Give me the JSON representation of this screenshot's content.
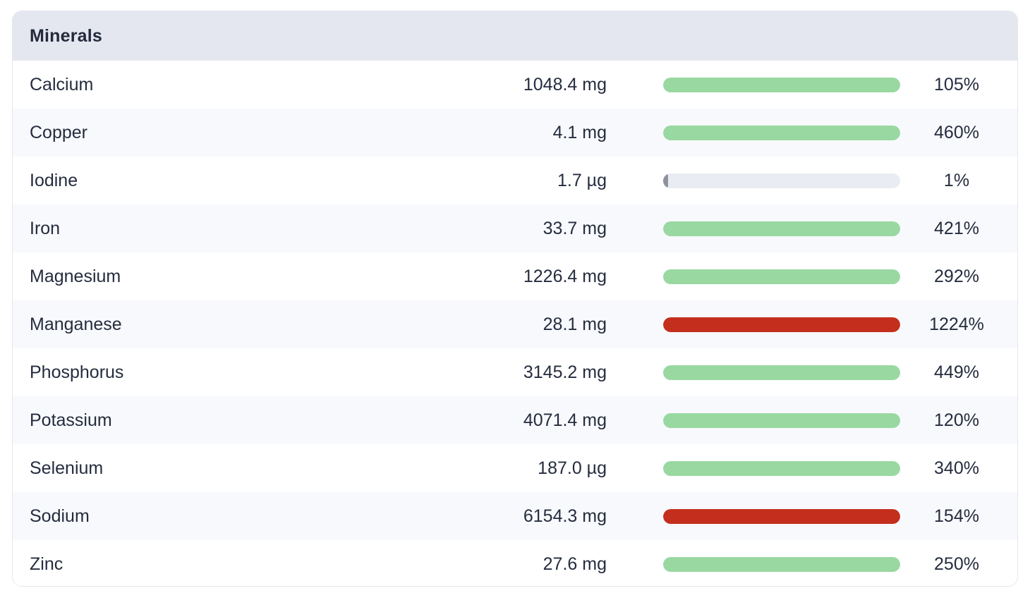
{
  "table": {
    "title": "Minerals",
    "rows": [
      {
        "name": "Calcium",
        "amount": "1048.4 mg",
        "percent_label": "105%",
        "percent": 105,
        "bar_color": "green"
      },
      {
        "name": "Copper",
        "amount": "4.1 mg",
        "percent_label": "460%",
        "percent": 460,
        "bar_color": "green"
      },
      {
        "name": "Iodine",
        "amount": "1.7 µg",
        "percent_label": "1%",
        "percent": 1,
        "bar_color": "gray"
      },
      {
        "name": "Iron",
        "amount": "33.7 mg",
        "percent_label": "421%",
        "percent": 421,
        "bar_color": "green"
      },
      {
        "name": "Magnesium",
        "amount": "1226.4 mg",
        "percent_label": "292%",
        "percent": 292,
        "bar_color": "green"
      },
      {
        "name": "Manganese",
        "amount": "28.1 mg",
        "percent_label": "1224%",
        "percent": 1224,
        "bar_color": "red"
      },
      {
        "name": "Phosphorus",
        "amount": "3145.2 mg",
        "percent_label": "449%",
        "percent": 449,
        "bar_color": "green"
      },
      {
        "name": "Potassium",
        "amount": "4071.4 mg",
        "percent_label": "120%",
        "percent": 120,
        "bar_color": "green"
      },
      {
        "name": "Selenium",
        "amount": "187.0 µg",
        "percent_label": "340%",
        "percent": 340,
        "bar_color": "green"
      },
      {
        "name": "Sodium",
        "amount": "6154.3 mg",
        "percent_label": "154%",
        "percent": 154,
        "bar_color": "red"
      },
      {
        "name": "Zinc",
        "amount": "27.6 mg",
        "percent_label": "250%",
        "percent": 250,
        "bar_color": "green"
      }
    ]
  },
  "colors": {
    "green": "#99d8a1",
    "red": "#c42f1d",
    "gray": "#8e929d",
    "track": "#e9ecf3",
    "header_bg": "#e4e7ef",
    "alt_row_bg": "#f8f9fc",
    "text": "#252c3e"
  }
}
